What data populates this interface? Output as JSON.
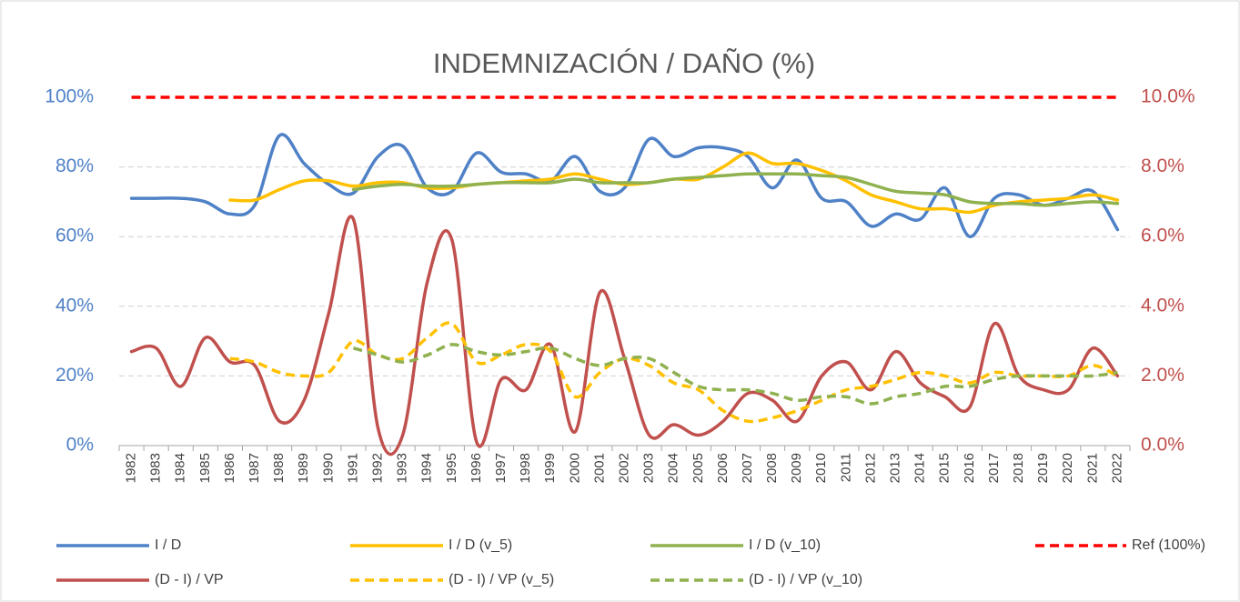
{
  "chart_data": {
    "type": "line",
    "title": "INDEMNIZACIÓN / DAÑO (%)",
    "categories": [
      "1982",
      "1983",
      "1984",
      "1985",
      "1986",
      "1987",
      "1988",
      "1989",
      "1990",
      "1991",
      "1992",
      "1993",
      "1994",
      "1995",
      "1996",
      "1997",
      "1998",
      "1999",
      "2000",
      "2001",
      "2002",
      "2003",
      "2004",
      "2005",
      "2006",
      "2007",
      "2008",
      "2009",
      "2010",
      "2011",
      "2012",
      "2013",
      "2014",
      "2015",
      "2016",
      "2017",
      "2018",
      "2019",
      "2020",
      "2021",
      "2022"
    ],
    "ylim": [
      0,
      100
    ],
    "yticks": [
      {
        "value": 0,
        "label": "0%"
      },
      {
        "value": 20,
        "label": "20%"
      },
      {
        "value": 40,
        "label": "40%"
      },
      {
        "value": 60,
        "label": "60%"
      },
      {
        "value": 80,
        "label": "80%"
      },
      {
        "value": 100,
        "label": "100%"
      }
    ],
    "y2lim": [
      0,
      10
    ],
    "y2ticks": [
      {
        "value": 0,
        "label": "0.0%"
      },
      {
        "value": 2,
        "label": "2.0%"
      },
      {
        "value": 4,
        "label": "4.0%"
      },
      {
        "value": 6,
        "label": "6.0%"
      },
      {
        "value": 8,
        "label": "8.0%"
      },
      {
        "value": 10,
        "label": "10.0%"
      }
    ],
    "grid": true,
    "legend": "bottom",
    "series": [
      {
        "name": "I / D",
        "color": "#4f81c7",
        "dash": false,
        "values": [
          71,
          71,
          71,
          70,
          66.5,
          69,
          89,
          81,
          75,
          72.5,
          83,
          86,
          74,
          73,
          84,
          78.5,
          78,
          76,
          83,
          73,
          74,
          88,
          83,
          85.5,
          85.5,
          83,
          74,
          82,
          71,
          70,
          63,
          66.5,
          65,
          74,
          60,
          71,
          72,
          69,
          71,
          73,
          62
        ]
      },
      {
        "name": "I / D (v_5)",
        "color": "#ffc000",
        "dash": false,
        "values": [
          null,
          null,
          null,
          null,
          70.5,
          70.5,
          73.5,
          76,
          76,
          74.5,
          75.5,
          75.5,
          74,
          74,
          75,
          75.5,
          76,
          76.5,
          78,
          76.5,
          75,
          75.5,
          76.5,
          76.5,
          80,
          84,
          81,
          81,
          79,
          76,
          72,
          70,
          68,
          68,
          67,
          69,
          70,
          70.5,
          71,
          72,
          70.5
        ]
      },
      {
        "name": "I / D (v_10)",
        "color": "#8fb14f",
        "dash": false,
        "values": [
          null,
          null,
          null,
          null,
          null,
          null,
          null,
          null,
          null,
          73.5,
          74.5,
          75,
          74.5,
          74.5,
          75,
          75.5,
          75.5,
          75.5,
          76.5,
          75.5,
          75.5,
          75.5,
          76.5,
          77,
          77.5,
          78,
          78,
          78,
          77.5,
          77,
          75,
          73,
          72.5,
          72,
          70,
          69.5,
          69.5,
          69,
          69.5,
          70,
          69.5
        ]
      },
      {
        "name": "Ref (100%)",
        "color": "#ff0000",
        "dash": true,
        "values": [
          100,
          100,
          100,
          100,
          100,
          100,
          100,
          100,
          100,
          100,
          100,
          100,
          100,
          100,
          100,
          100,
          100,
          100,
          100,
          100,
          100,
          100,
          100,
          100,
          100,
          100,
          100,
          100,
          100,
          100,
          100,
          100,
          100,
          100,
          100,
          100,
          100,
          100,
          100,
          100,
          100
        ]
      },
      {
        "name": "(D - I) / VP",
        "color": "#c0504d",
        "dash": false,
        "axis": "y2",
        "values": [
          2.7,
          2.8,
          1.7,
          3.1,
          2.4,
          2.3,
          0.7,
          1.3,
          3.8,
          6.5,
          0.5,
          0.3,
          4.7,
          5.9,
          0.1,
          1.9,
          1.6,
          2.9,
          0.4,
          4.4,
          2.5,
          0.3,
          0.6,
          0.3,
          0.7,
          1.5,
          1.3,
          0.7,
          2.0,
          2.4,
          1.6,
          2.7,
          1.8,
          1.4,
          1.1,
          3.5,
          2.0,
          1.6,
          1.6,
          2.8,
          2.0
        ]
      },
      {
        "name": "(D - I) / VP (v_5)",
        "color": "#ffc000",
        "dash": true,
        "axis": "y2",
        "values": [
          null,
          null,
          null,
          null,
          2.5,
          2.4,
          2.1,
          2.0,
          2.1,
          3.0,
          2.6,
          2.5,
          3.1,
          3.5,
          2.4,
          2.6,
          2.9,
          2.7,
          1.4,
          2.1,
          2.5,
          2.3,
          1.8,
          1.6,
          1.0,
          0.7,
          0.8,
          1.0,
          1.3,
          1.6,
          1.7,
          1.9,
          2.1,
          2.0,
          1.8,
          2.1,
          2.0,
          2.0,
          2.0,
          2.3,
          2.0
        ]
      },
      {
        "name": "(D - I) / VP (v_10)",
        "color": "#8fb14f",
        "dash": true,
        "axis": "y2",
        "values": [
          null,
          null,
          null,
          null,
          null,
          null,
          null,
          null,
          null,
          2.8,
          2.6,
          2.4,
          2.6,
          2.9,
          2.7,
          2.6,
          2.7,
          2.8,
          2.5,
          2.3,
          2.5,
          2.5,
          2.1,
          1.7,
          1.6,
          1.6,
          1.5,
          1.3,
          1.4,
          1.4,
          1.2,
          1.4,
          1.5,
          1.7,
          1.7,
          1.9,
          2.0,
          2.0,
          2.0,
          2.0,
          2.1
        ]
      }
    ]
  }
}
